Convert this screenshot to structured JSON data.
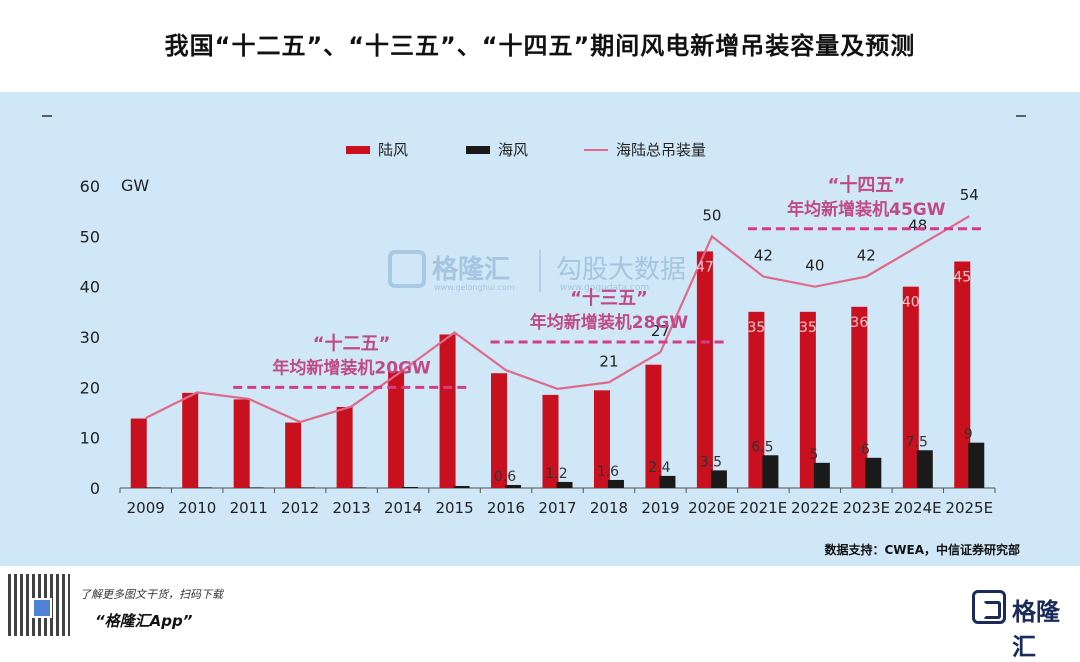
{
  "page": {
    "title": "我国“十二五”、“十三五”、“十四五”期间风电新增吊装容量及预测",
    "source": "数据支持：CWEA，中信证券研究部"
  },
  "chart_data": {
    "type": "bar",
    "categories": [
      "2009",
      "2010",
      "2011",
      "2012",
      "2013",
      "2014",
      "2015",
      "2016",
      "2017",
      "2018",
      "2019",
      "2020E",
      "2021E",
      "2022E",
      "2023E",
      "2024E",
      "2025E"
    ],
    "series": [
      {
        "name": "陆风",
        "type": "bar",
        "color": "#c8101e",
        "values": [
          13.8,
          18.9,
          17.6,
          13.0,
          16.1,
          23.2,
          30.5,
          22.8,
          18.5,
          19.4,
          24.5,
          47,
          35,
          35,
          36,
          40,
          45
        ],
        "labels": [
          "",
          "",
          "",
          "",
          "",
          "",
          "",
          "",
          "",
          "",
          "",
          "47",
          "35",
          "35",
          "36",
          "40",
          "45"
        ]
      },
      {
        "name": "海风",
        "type": "bar",
        "color": "#1a1a1a",
        "values": [
          0.1,
          0.1,
          0.1,
          0.1,
          0.1,
          0.2,
          0.4,
          0.6,
          1.2,
          1.6,
          2.4,
          3.5,
          6.5,
          5,
          6,
          7.5,
          9
        ],
        "labels": [
          "",
          "",
          "",
          "",
          "",
          "",
          "",
          "0.6",
          "1.2",
          "1.6",
          "2.4",
          "3.5",
          "6.5",
          "5",
          "6",
          "7.5",
          "9"
        ]
      },
      {
        "name": "海陆总吊装量",
        "type": "line",
        "color": "#e06a8a",
        "values": [
          13.9,
          19.0,
          17.7,
          13.1,
          16.2,
          23.4,
          30.9,
          23.4,
          19.7,
          21,
          27,
          50,
          42,
          40,
          42,
          48,
          54
        ],
        "labels": [
          "",
          "",
          "",
          "",
          "",
          "",
          "",
          "",
          "",
          "21",
          "27",
          "50",
          "42",
          "40",
          "42",
          "48",
          "54"
        ]
      }
    ],
    "ylabel": "GW",
    "ylim": [
      0,
      60
    ],
    "yticks": [
      0,
      10,
      20,
      30,
      40,
      50,
      60
    ],
    "grid": false,
    "legend": "top",
    "annotations": [
      {
        "quote": "“十二五”",
        "text": "年均新增装机20GW",
        "level": 20,
        "from": "2011",
        "to": "2015"
      },
      {
        "quote": "“十三五”",
        "text": "年均新增装机28GW",
        "level": 29,
        "from": "2016",
        "to": "2020E"
      },
      {
        "quote": "“十四五”",
        "text": "年均新增装机45GW",
        "level": 51.5,
        "from": "2021E",
        "to": "2025E"
      }
    ],
    "watermark": {
      "brand": "格隆汇",
      "brand_url": "www.gelonghui.com",
      "text": "勾股大数据",
      "url": "www.gogudata.com"
    }
  },
  "footer": {
    "tip": "了解更多图文干货，扫码下载",
    "app": "“格隆汇App”",
    "brand": "格隆汇"
  },
  "colors": {
    "background": "#cfe7f7",
    "annotation": "#c04a86",
    "annotation_line": "#d43d86"
  }
}
